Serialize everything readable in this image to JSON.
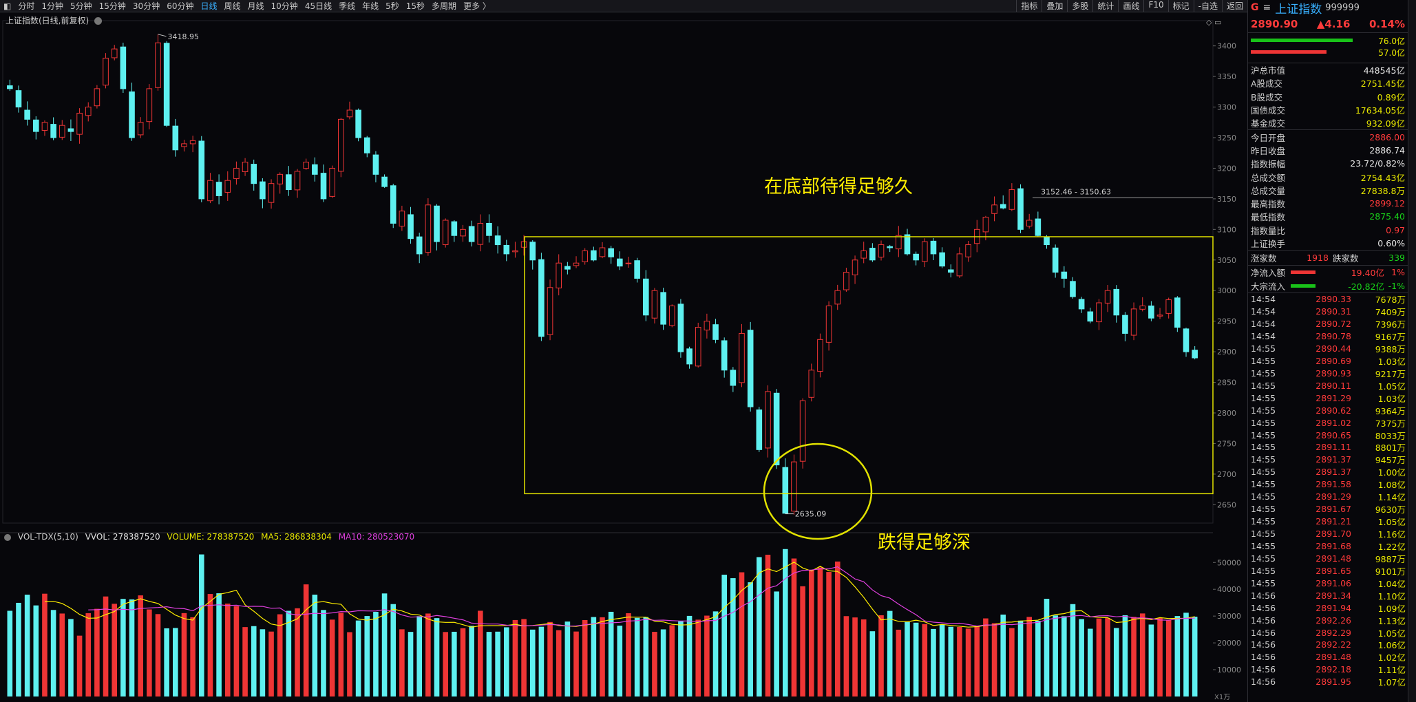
{
  "toolbar": {
    "periods": [
      "分时",
      "1分钟",
      "5分钟",
      "15分钟",
      "30分钟",
      "60分钟",
      "日线",
      "周线",
      "月线",
      "10分钟",
      "45日线",
      "季线",
      "年线",
      "5秒",
      "15秒",
      "多周期",
      "更多 〉"
    ],
    "active": "日线",
    "right": [
      "指标",
      "叠加",
      "多股",
      "统计",
      "画线",
      "F10",
      "标记",
      "-自选",
      "返回"
    ]
  },
  "price_title": "上证指数(日线,前复权)",
  "volume_legend": {
    "name": "VOL-TDX(5,10)",
    "vvol": "VVOL: 278387520",
    "volume": "VOLUME: 278387520",
    "ma5": "MA5: 286838304",
    "ma10": "MA10: 280523070"
  },
  "annotations": {
    "top": "在底部待得足够久",
    "bottom": "跌得足够深"
  },
  "colors": {
    "up": "#ef3535",
    "down": "#5ef0f0",
    "ma5": "#ffee00",
    "ma10": "#e040e0",
    "box": "#e2e200",
    "bg": "#07070b"
  },
  "chart_data": [
    {
      "type": "candlestick",
      "series_name": "上证指数",
      "y_ticks": [
        3400,
        3350,
        3300,
        3250,
        3200,
        3150,
        3100,
        3050,
        3000,
        2950,
        2900,
        2850,
        2800,
        2750,
        2700,
        2650
      ],
      "ylim": [
        2620,
        3430
      ],
      "high_label": "3418.95",
      "low_label": "2635.09",
      "hline_label": "3152.46 - 3150.63",
      "hline_value": 3151.5,
      "box_range": [
        2668,
        3088
      ],
      "path": [
        3330,
        3300,
        3280,
        3260,
        3275,
        3250,
        3270,
        3260,
        3290,
        3300,
        3330,
        3380,
        3395,
        3330,
        3250,
        3275,
        3330,
        3405,
        3270,
        3230,
        3240,
        3245,
        3150,
        3180,
        3155,
        3180,
        3200,
        3210,
        3175,
        3150,
        3175,
        3190,
        3165,
        3195,
        3210,
        3190,
        3150,
        3200,
        3280,
        3295,
        3250,
        3225,
        3190,
        3170,
        3110,
        3130,
        3085,
        3060,
        3140,
        3080,
        3115,
        3090,
        3100,
        3080,
        3110,
        3090,
        3075,
        3060,
        3065,
        3080,
        3050,
        2925,
        3005,
        3045,
        3035,
        3045,
        3065,
        3050,
        3070,
        3055,
        3040,
        3045,
        3020,
        2960,
        3000,
        2945,
        2975,
        2900,
        2880,
        2940,
        2950,
        2920,
        2870,
        2845,
        2930,
        2810,
        2740,
        2835,
        2715,
        2636,
        2720,
        2820,
        2870,
        2920,
        2975,
        3000,
        3030,
        3050,
        3065,
        3050,
        3075,
        3070,
        3090,
        3060,
        3050,
        3080,
        3060,
        3040,
        3030,
        3060,
        3075,
        3100,
        3120,
        3140,
        3135,
        3165,
        3100,
        3115,
        3090,
        3075,
        3030,
        3020,
        2990,
        2970,
        2950,
        2980,
        3000,
        2960,
        2930,
        2970,
        2975,
        2955,
        2960,
        2985,
        2940,
        2900,
        2890
      ]
    },
    {
      "type": "bar",
      "series_name": "VOLUME",
      "y_ticks": [
        50000,
        40000,
        30000,
        20000,
        10000
      ],
      "y_unit": "X1万",
      "ylim": [
        0,
        57000
      ],
      "ma": [
        {
          "name": "MA5",
          "period": 5
        },
        {
          "name": "MA10",
          "period": 10
        }
      ]
    }
  ],
  "sidebar": {
    "header": {
      "g": "G",
      "menu": "≡",
      "name": "上证指数",
      "code": "999999"
    },
    "quote": {
      "price": "2890.90",
      "change": "▲4.16",
      "pct": "0.14%"
    },
    "bars": [
      {
        "val": "76.0亿",
        "pct": 0.75
      },
      {
        "val": "57.0亿",
        "pct": 0.56
      }
    ],
    "stats1": [
      {
        "k": "沪总市值",
        "v": "448545亿",
        "c": "wht"
      },
      {
        "k": "A股成交",
        "v": "2751.45亿",
        "c": "yel"
      },
      {
        "k": "B股成交",
        "v": "0.89亿",
        "c": "yel"
      },
      {
        "k": "国债成交",
        "v": "17634.05亿",
        "c": "yel"
      },
      {
        "k": "基金成交",
        "v": "932.09亿",
        "c": "yel"
      }
    ],
    "stats2": [
      {
        "k": "今日开盘",
        "v": "2886.00",
        "c": "red"
      },
      {
        "k": "昨日收盘",
        "v": "2886.74",
        "c": "wht"
      },
      {
        "k": "指数振幅",
        "v": "23.72/0.82%",
        "c": "wht"
      },
      {
        "k": "总成交额",
        "v": "2754.43亿",
        "c": "yel"
      },
      {
        "k": "总成交量",
        "v": "27838.8万",
        "c": "yel"
      },
      {
        "k": "最高指数",
        "v": "2899.12",
        "c": "red"
      },
      {
        "k": "最低指数",
        "v": "2875.40",
        "c": "grn"
      },
      {
        "k": "指数量比",
        "v": "0.97",
        "c": "red"
      },
      {
        "k": "上证换手",
        "v": "0.60%",
        "c": "wht"
      }
    ],
    "updown": {
      "up_label": "涨家数",
      "up": "1918",
      "down_label": "跌家数",
      "down": "339"
    },
    "flows": [
      {
        "k": "净流入额",
        "v": "19.40亿",
        "p": "1%",
        "c": "red"
      },
      {
        "k": "大宗流入",
        "v": "-20.82亿",
        "p": "-1%",
        "c": "grn"
      }
    ],
    "ticks": [
      [
        "14:54",
        "2890.33",
        "7678万"
      ],
      [
        "14:54",
        "2890.31",
        "7409万"
      ],
      [
        "14:54",
        "2890.72",
        "7396万"
      ],
      [
        "14:54",
        "2890.78",
        "9167万"
      ],
      [
        "14:55",
        "2890.44",
        "9388万"
      ],
      [
        "14:55",
        "2890.69",
        "1.03亿"
      ],
      [
        "14:55",
        "2890.93",
        "9217万"
      ],
      [
        "14:55",
        "2890.11",
        "1.05亿"
      ],
      [
        "14:55",
        "2891.29",
        "1.03亿"
      ],
      [
        "14:55",
        "2890.62",
        "9364万"
      ],
      [
        "14:55",
        "2891.02",
        "7375万"
      ],
      [
        "14:55",
        "2890.65",
        "8033万"
      ],
      [
        "14:55",
        "2891.11",
        "8801万"
      ],
      [
        "14:55",
        "2891.37",
        "9457万"
      ],
      [
        "14:55",
        "2891.37",
        "1.00亿"
      ],
      [
        "14:55",
        "2891.58",
        "1.08亿"
      ],
      [
        "14:55",
        "2891.29",
        "1.14亿"
      ],
      [
        "14:55",
        "2891.67",
        "9630万"
      ],
      [
        "14:55",
        "2891.21",
        "1.05亿"
      ],
      [
        "14:55",
        "2891.70",
        "1.16亿"
      ],
      [
        "14:55",
        "2891.68",
        "1.22亿"
      ],
      [
        "14:55",
        "2891.48",
        "9887万"
      ],
      [
        "14:55",
        "2891.65",
        "9101万"
      ],
      [
        "14:55",
        "2891.06",
        "1.04亿"
      ],
      [
        "14:56",
        "2891.34",
        "1.10亿"
      ],
      [
        "14:56",
        "2891.94",
        "1.09亿"
      ],
      [
        "14:56",
        "2892.26",
        "1.13亿"
      ],
      [
        "14:56",
        "2892.29",
        "1.05亿"
      ],
      [
        "14:56",
        "2892.22",
        "1.06亿"
      ],
      [
        "14:56",
        "2891.48",
        "1.02亿"
      ],
      [
        "14:56",
        "2892.18",
        "1.11亿"
      ],
      [
        "14:56",
        "2891.95",
        "1.07亿"
      ]
    ]
  }
}
